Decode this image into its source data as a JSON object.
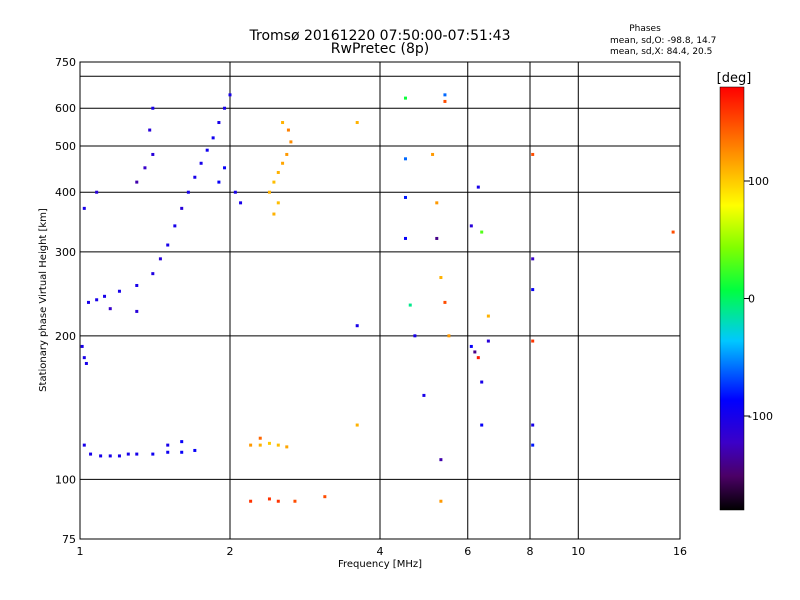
{
  "chart_data": {
    "type": "scatter",
    "title": "Tromsø 20161220 07:50:00-07:51:43",
    "subtitle": "RwPretec (8p)",
    "xlabel": "Frequency [MHz]",
    "ylabel": "Stationary phase Virtual Height [km]",
    "x_scale": "log",
    "y_scale": "log",
    "xlim": [
      1,
      16
    ],
    "ylim": [
      75,
      750
    ],
    "x_ticks": [
      1,
      2,
      4,
      6,
      8,
      10,
      16
    ],
    "y_ticks": [
      75,
      100,
      200,
      300,
      400,
      500,
      600,
      700,
      750
    ],
    "y_tick_labels": [
      "75",
      "100",
      "200",
      "300",
      "400",
      "500",
      "600",
      "750"
    ],
    "grid": true,
    "stats": {
      "header": "Phases",
      "line1": "mean, sd,O: -98.8, 14.7",
      "line2": "mean, sd,X:  84.4, 20.5"
    },
    "colorbar": {
      "label": "[deg]",
      "ticks": [
        100,
        0,
        -100
      ],
      "range": [
        -180,
        180
      ],
      "colormap": "rainbow"
    },
    "series": [
      {
        "points": [
          [
            1.02,
            118
          ],
          [
            1.05,
            113
          ],
          [
            1.1,
            112
          ],
          [
            1.15,
            112
          ],
          [
            1.2,
            112
          ],
          [
            1.25,
            113
          ],
          [
            1.3,
            113
          ],
          [
            1.4,
            113
          ],
          [
            1.5,
            114
          ],
          [
            1.6,
            114
          ],
          [
            1.7,
            115
          ],
          [
            1.04,
            235
          ],
          [
            1.08,
            238
          ],
          [
            1.12,
            242
          ],
          [
            1.2,
            248
          ],
          [
            1.3,
            255
          ],
          [
            1.4,
            270
          ],
          [
            1.45,
            290
          ],
          [
            1.5,
            310
          ],
          [
            1.55,
            340
          ],
          [
            1.6,
            370
          ],
          [
            1.65,
            400
          ],
          [
            1.7,
            430
          ],
          [
            1.75,
            460
          ],
          [
            1.8,
            490
          ],
          [
            1.85,
            520
          ],
          [
            1.9,
            560
          ],
          [
            1.95,
            600
          ],
          [
            2.0,
            640
          ],
          [
            1.9,
            420
          ],
          [
            1.95,
            450
          ],
          [
            2.05,
            400
          ],
          [
            2.1,
            380
          ],
          [
            1.3,
            420
          ],
          [
            1.35,
            450
          ],
          [
            1.4,
            480
          ],
          [
            1.38,
            540
          ],
          [
            1.4,
            600
          ],
          [
            1.08,
            400
          ],
          [
            1.02,
            370
          ],
          [
            1.3,
            225
          ],
          [
            1.15,
            228
          ],
          [
            1.02,
            180
          ],
          [
            1.03,
            175
          ],
          [
            1.01,
            190
          ],
          [
            1.6,
            120
          ],
          [
            1.5,
            118
          ]
        ],
        "values": [
          -100,
          -100,
          -100,
          -100,
          -100,
          -100,
          -100,
          -95,
          -95,
          -90,
          -90,
          -100,
          -100,
          -100,
          -100,
          -100,
          -105,
          -110,
          -100,
          -100,
          -110,
          -100,
          -100,
          -100,
          -95,
          -95,
          -100,
          -100,
          -100,
          -90,
          -90,
          -100,
          -100,
          -130,
          -120,
          -110,
          -110,
          -100,
          -110,
          -100,
          -110,
          -120,
          -100,
          -100,
          -100,
          -90,
          -100
        ]
      },
      {
        "points": [
          [
            2.4,
            400
          ],
          [
            2.45,
            420
          ],
          [
            2.5,
            440
          ],
          [
            2.55,
            460
          ],
          [
            2.6,
            480
          ],
          [
            2.65,
            510
          ],
          [
            2.62,
            540
          ],
          [
            2.55,
            560
          ],
          [
            2.5,
            380
          ],
          [
            2.45,
            360
          ],
          [
            2.2,
            118
          ],
          [
            2.3,
            118
          ],
          [
            2.4,
            119
          ],
          [
            2.5,
            118
          ],
          [
            2.6,
            117
          ],
          [
            2.3,
            122
          ],
          [
            2.2,
            90
          ],
          [
            2.4,
            91
          ],
          [
            2.5,
            90
          ],
          [
            2.7,
            90
          ],
          [
            3.1,
            92
          ],
          [
            3.6,
            560
          ],
          [
            3.6,
            130
          ],
          [
            5.3,
            90
          ],
          [
            5.1,
            480
          ],
          [
            5.2,
            380
          ],
          [
            5.4,
            620
          ],
          [
            5.3,
            265
          ],
          [
            5.4,
            235
          ],
          [
            5.5,
            200
          ],
          [
            6.6,
            220
          ],
          [
            8.1,
            480
          ],
          [
            8.1,
            195
          ],
          [
            15.5,
            330
          ],
          [
            6.3,
            180
          ]
        ],
        "values": [
          110,
          105,
          110,
          115,
          120,
          125,
          130,
          110,
          105,
          110,
          120,
          110,
          100,
          105,
          115,
          140,
          160,
          160,
          160,
          150,
          150,
          110,
          110,
          120,
          120,
          120,
          150,
          110,
          150,
          120,
          110,
          150,
          160,
          150,
          170
        ]
      },
      {
        "points": [
          [
            3.6,
            210
          ],
          [
            4.5,
            630
          ],
          [
            4.5,
            470
          ],
          [
            4.5,
            390
          ],
          [
            4.5,
            320
          ],
          [
            4.6,
            232
          ],
          [
            4.7,
            200
          ],
          [
            4.9,
            150
          ],
          [
            5.3,
            110
          ],
          [
            5.2,
            320
          ],
          [
            6.1,
            340
          ],
          [
            6.1,
            190
          ],
          [
            6.3,
            410
          ],
          [
            6.4,
            330
          ],
          [
            6.4,
            160
          ],
          [
            6.4,
            130
          ],
          [
            6.6,
            195
          ],
          [
            8.1,
            290
          ],
          [
            8.1,
            250
          ],
          [
            8.1,
            130
          ],
          [
            8.1,
            118
          ],
          [
            5.4,
            640
          ],
          [
            6.2,
            185
          ]
        ],
        "values": [
          -100,
          10,
          -60,
          -80,
          -90,
          -10,
          -100,
          -100,
          -130,
          -140,
          -110,
          -90,
          -100,
          30,
          -100,
          -90,
          -110,
          -120,
          -90,
          -100,
          -80,
          -60,
          -140
        ]
      }
    ]
  }
}
